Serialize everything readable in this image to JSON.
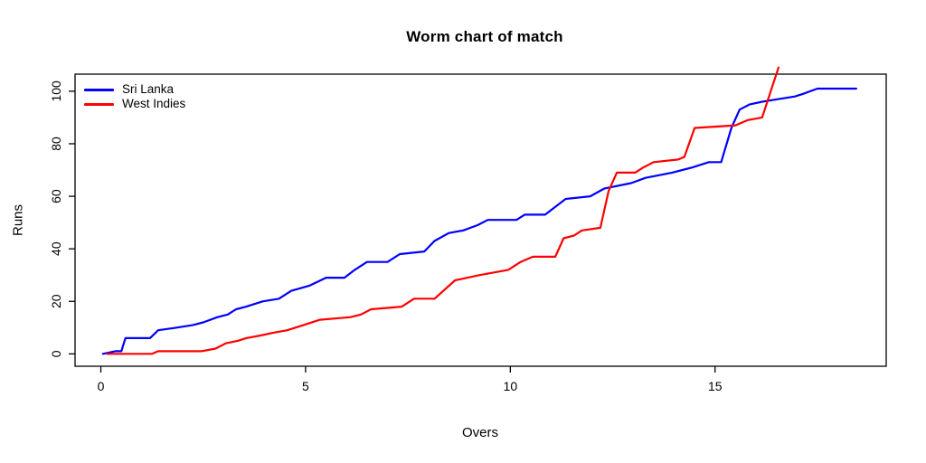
{
  "chart_data": {
    "type": "line",
    "title": "Worm chart of match",
    "xlabel": "Overs",
    "ylabel": "Runs",
    "x_domain": [
      -0.63,
      19.18
    ],
    "y_domain": [
      -4.7,
      106.5
    ],
    "x_ticks": [
      0,
      5,
      10,
      15
    ],
    "y_ticks": [
      0,
      20,
      40,
      60,
      80,
      100
    ],
    "grid": false,
    "legend_position": "top-left-inside",
    "axis_color": "#000000",
    "background": "#ffffff",
    "series": [
      {
        "name": "Sri Lanka",
        "color": "#0000ff",
        "points": [
          [
            0.05,
            0
          ],
          [
            0.35,
            1
          ],
          [
            0.5,
            1
          ],
          [
            0.6,
            6
          ],
          [
            1.2,
            6
          ],
          [
            1.4,
            9
          ],
          [
            1.85,
            10
          ],
          [
            2.25,
            11
          ],
          [
            2.5,
            12
          ],
          [
            2.85,
            14
          ],
          [
            3.1,
            15
          ],
          [
            3.3,
            17
          ],
          [
            3.55,
            18
          ],
          [
            3.95,
            20
          ],
          [
            4.35,
            21
          ],
          [
            4.65,
            24
          ],
          [
            5.1,
            26
          ],
          [
            5.5,
            29
          ],
          [
            5.95,
            29
          ],
          [
            6.2,
            32
          ],
          [
            6.5,
            35
          ],
          [
            7.0,
            35
          ],
          [
            7.3,
            38
          ],
          [
            7.9,
            39
          ],
          [
            8.15,
            43
          ],
          [
            8.5,
            46
          ],
          [
            8.85,
            47
          ],
          [
            9.2,
            49
          ],
          [
            9.45,
            51
          ],
          [
            10.15,
            51
          ],
          [
            10.35,
            53
          ],
          [
            10.85,
            53
          ],
          [
            11.35,
            59
          ],
          [
            11.95,
            60
          ],
          [
            12.3,
            63
          ],
          [
            12.95,
            65
          ],
          [
            13.3,
            67
          ],
          [
            13.95,
            69
          ],
          [
            14.45,
            71
          ],
          [
            14.85,
            73
          ],
          [
            15.15,
            73
          ],
          [
            15.4,
            86
          ],
          [
            15.6,
            93
          ],
          [
            15.85,
            95
          ],
          [
            16.15,
            96
          ],
          [
            16.55,
            97
          ],
          [
            16.95,
            98
          ],
          [
            17.15,
            99
          ],
          [
            17.5,
            101
          ],
          [
            18.45,
            101
          ]
        ]
      },
      {
        "name": "West Indies",
        "color": "#ff0000",
        "points": [
          [
            0.15,
            0
          ],
          [
            1.25,
            0
          ],
          [
            1.4,
            1
          ],
          [
            2.45,
            1
          ],
          [
            2.8,
            2
          ],
          [
            3.05,
            4
          ],
          [
            3.35,
            5
          ],
          [
            3.55,
            6
          ],
          [
            3.9,
            7
          ],
          [
            4.2,
            8
          ],
          [
            4.55,
            9
          ],
          [
            4.95,
            11
          ],
          [
            5.35,
            13
          ],
          [
            6.1,
            14
          ],
          [
            6.35,
            15
          ],
          [
            6.6,
            17
          ],
          [
            7.35,
            18
          ],
          [
            7.65,
            21
          ],
          [
            8.15,
            21
          ],
          [
            8.65,
            28
          ],
          [
            9.25,
            30
          ],
          [
            9.95,
            32
          ],
          [
            10.25,
            35
          ],
          [
            10.55,
            37
          ],
          [
            11.1,
            37
          ],
          [
            11.3,
            44
          ],
          [
            11.55,
            45
          ],
          [
            11.75,
            47
          ],
          [
            12.2,
            48
          ],
          [
            12.4,
            62
          ],
          [
            12.6,
            69
          ],
          [
            13.05,
            69
          ],
          [
            13.25,
            71
          ],
          [
            13.5,
            73
          ],
          [
            14.1,
            74
          ],
          [
            14.25,
            75
          ],
          [
            14.5,
            86
          ],
          [
            15.5,
            87
          ],
          [
            15.8,
            89
          ],
          [
            16.15,
            90
          ],
          [
            16.55,
            109
          ]
        ]
      }
    ]
  }
}
